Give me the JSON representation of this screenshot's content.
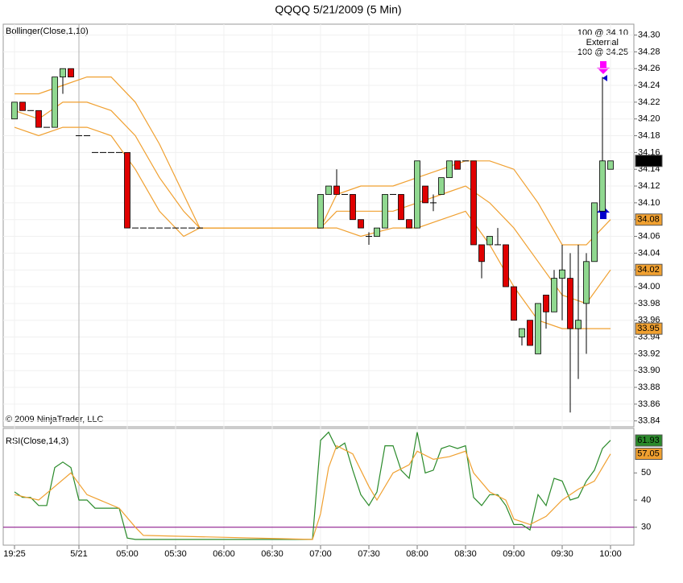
{
  "chart_data": [
    {
      "type": "candlestick",
      "title": "QQQQ  5/21/2009 (5 Min)",
      "indicator_label": "Bollinger(Close,1,10)",
      "copyright": "© 2009 NinjaTrader, LLC",
      "annotations": [
        "100 @ 34.10",
        "External",
        "100 @ 34.25"
      ],
      "xlim": [
        -1.4,
        76.9
      ],
      "xticks": [
        {
          "value": 0,
          "label": "19:25"
        },
        {
          "value": 8,
          "label": "5/21"
        },
        {
          "value": 14,
          "label": "05:00"
        },
        {
          "value": 20,
          "label": "05:30"
        },
        {
          "value": 26,
          "label": "06:00"
        },
        {
          "value": 32,
          "label": "06:30"
        },
        {
          "value": 38,
          "label": "07:00"
        },
        {
          "value": 44,
          "label": "07:30"
        },
        {
          "value": 50,
          "label": "08:00"
        },
        {
          "value": 56,
          "label": "08:30"
        },
        {
          "value": 62,
          "label": "09:00"
        },
        {
          "value": 68,
          "label": "09:30"
        },
        {
          "value": 74,
          "label": "10:00"
        }
      ],
      "ylim": [
        33.833,
        34.313
      ],
      "yticks": [
        {
          "value": 33.84,
          "label": "33.84"
        },
        {
          "value": 33.86,
          "label": "33.86"
        },
        {
          "value": 33.88,
          "label": "33.88"
        },
        {
          "value": 33.9,
          "label": "33.90"
        },
        {
          "value": 33.92,
          "label": "33.92"
        },
        {
          "value": 33.94,
          "label": "33.94"
        },
        {
          "value": 33.96,
          "label": "33.96"
        },
        {
          "value": 33.98,
          "label": "33.98"
        },
        {
          "value": 34.0,
          "label": "34.00"
        },
        {
          "value": 34.02,
          "label": "34.02"
        },
        {
          "value": 34.04,
          "label": "34.04"
        },
        {
          "value": 34.06,
          "label": "34.06"
        },
        {
          "value": 34.08,
          "label": "34.08"
        },
        {
          "value": 34.1,
          "label": "34.10"
        },
        {
          "value": 34.12,
          "label": "34.12"
        },
        {
          "value": 34.14,
          "label": "34.14"
        },
        {
          "value": 34.16,
          "label": "34.16"
        },
        {
          "value": 34.18,
          "label": "34.18"
        },
        {
          "value": 34.2,
          "label": "34.20"
        },
        {
          "value": 34.22,
          "label": "34.22"
        },
        {
          "value": 34.24,
          "label": "34.24"
        },
        {
          "value": 34.26,
          "label": "34.26"
        },
        {
          "value": 34.28,
          "label": "34.28"
        },
        {
          "value": 34.3,
          "label": "34.30"
        }
      ],
      "grid": true,
      "up_color": "#90d890",
      "down_color": "#e00000",
      "candles": {
        "x": [
          0,
          1,
          2,
          3,
          4,
          5,
          6,
          7,
          8,
          9,
          10,
          11,
          12,
          13,
          14,
          15,
          16,
          17,
          18,
          19,
          20,
          21,
          22,
          23,
          38,
          39,
          40,
          41,
          42,
          43,
          44,
          45,
          46,
          47,
          48,
          49,
          50,
          51,
          52,
          53,
          54,
          55,
          56,
          57,
          58,
          59,
          60,
          61,
          62,
          63,
          64,
          65,
          66,
          67,
          68,
          69,
          70,
          71,
          72,
          73,
          74
        ],
        "open": [
          34.2,
          34.22,
          34.21,
          34.21,
          34.19,
          34.19,
          34.25,
          34.26,
          34.18,
          34.18,
          34.16,
          34.16,
          34.16,
          34.16,
          34.16,
          34.07,
          34.07,
          34.07,
          34.07,
          34.07,
          34.07,
          34.07,
          34.07,
          34.07,
          34.07,
          34.11,
          34.12,
          34.11,
          34.11,
          34.08,
          34.06,
          34.06,
          34.07,
          34.11,
          34.11,
          34.08,
          34.07,
          34.12,
          34.1,
          34.11,
          34.13,
          34.15,
          34.15,
          34.15,
          34.05,
          34.05,
          34.05,
          34.05,
          34.0,
          33.94,
          33.96,
          33.92,
          33.99,
          33.97,
          34.01,
          34.01,
          33.95,
          33.98,
          34.03,
          34.09,
          34.14
        ],
        "high": [
          34.22,
          34.22,
          34.21,
          34.21,
          34.19,
          34.25,
          34.26,
          34.26,
          34.18,
          34.18,
          34.16,
          34.16,
          34.16,
          34.16,
          34.16,
          34.07,
          34.07,
          34.07,
          34.07,
          34.07,
          34.07,
          34.07,
          34.07,
          34.07,
          34.11,
          34.12,
          34.14,
          34.11,
          34.11,
          34.08,
          34.065,
          34.07,
          34.11,
          34.11,
          34.11,
          34.08,
          34.15,
          34.12,
          34.11,
          34.13,
          34.15,
          34.15,
          34.15,
          34.15,
          34.05,
          34.06,
          34.07,
          34.05,
          34.0,
          33.95,
          33.96,
          33.98,
          33.99,
          34.02,
          34.05,
          34.04,
          34.05,
          34.04,
          34.1,
          34.25,
          34.15
        ],
        "low": [
          34.2,
          34.21,
          34.21,
          34.19,
          34.19,
          34.19,
          34.23,
          34.25,
          34.18,
          34.18,
          34.16,
          34.16,
          34.16,
          34.16,
          34.07,
          34.07,
          34.07,
          34.07,
          34.07,
          34.07,
          34.07,
          34.07,
          34.07,
          34.07,
          34.07,
          34.11,
          34.11,
          34.11,
          34.08,
          34.07,
          34.05,
          34.06,
          34.07,
          34.11,
          34.08,
          34.07,
          34.07,
          34.1,
          34.09,
          34.11,
          34.13,
          34.14,
          34.15,
          34.05,
          34.01,
          34.05,
          34.05,
          34.0,
          33.96,
          33.93,
          33.93,
          33.92,
          33.95,
          33.97,
          33.96,
          33.85,
          33.89,
          33.92,
          34.03,
          34.09,
          34.14
        ],
        "close": [
          34.22,
          34.21,
          34.21,
          34.19,
          34.19,
          34.25,
          34.26,
          34.25,
          34.18,
          34.18,
          34.16,
          34.16,
          34.16,
          34.16,
          34.07,
          34.07,
          34.07,
          34.07,
          34.07,
          34.07,
          34.07,
          34.07,
          34.07,
          34.07,
          34.11,
          34.12,
          34.11,
          34.11,
          34.08,
          34.07,
          34.06,
          34.07,
          34.11,
          34.11,
          34.08,
          34.07,
          34.15,
          34.1,
          34.1,
          34.13,
          34.15,
          34.14,
          34.15,
          34.05,
          34.03,
          34.06,
          34.05,
          34.0,
          33.96,
          33.95,
          33.93,
          33.98,
          33.97,
          34.01,
          34.02,
          33.95,
          33.96,
          34.03,
          34.1,
          34.15,
          34.15
        ]
      },
      "series": [
        {
          "name": "Upper",
          "color": "#f0a030",
          "x": [
            0,
            3,
            6,
            9,
            12,
            15,
            18,
            21,
            23,
            38,
            40,
            43,
            47,
            50,
            53,
            56,
            59,
            62,
            65,
            68,
            71,
            74
          ],
          "values": [
            34.23,
            34.23,
            34.24,
            34.25,
            34.25,
            34.22,
            34.17,
            34.11,
            34.07,
            34.07,
            34.11,
            34.12,
            34.12,
            34.13,
            34.14,
            34.15,
            34.15,
            34.14,
            34.1,
            34.05,
            34.05,
            34.08
          ]
        },
        {
          "name": "Middle",
          "color": "#f0a030",
          "x": [
            0,
            3,
            6,
            9,
            12,
            15,
            18,
            21,
            23,
            38,
            40,
            43,
            47,
            50,
            53,
            56,
            59,
            62,
            65,
            68,
            71,
            74
          ],
          "values": [
            34.21,
            34.2,
            34.22,
            34.22,
            34.21,
            34.18,
            34.13,
            34.09,
            34.07,
            34.07,
            34.09,
            34.09,
            34.09,
            34.1,
            34.11,
            34.12,
            34.1,
            34.07,
            34.03,
            33.99,
            33.98,
            34.02
          ]
        },
        {
          "name": "Lower",
          "color": "#f0a030",
          "x": [
            0,
            3,
            6,
            9,
            12,
            15,
            18,
            21,
            23,
            38,
            40,
            43,
            47,
            50,
            53,
            56,
            59,
            62,
            65,
            68,
            71,
            74
          ],
          "values": [
            34.19,
            34.18,
            34.19,
            34.19,
            34.18,
            34.14,
            34.09,
            34.06,
            34.07,
            34.07,
            34.07,
            34.06,
            34.07,
            34.07,
            34.08,
            34.09,
            34.05,
            34.0,
            33.96,
            33.95,
            33.95,
            33.95
          ]
        }
      ],
      "last_labels": [
        {
          "value": 34.15,
          "color": "#000000",
          "text_color": "#ffffff"
        },
        {
          "value": 34.08,
          "color": "#f0a030",
          "text_color": "#000000"
        },
        {
          "value": 34.02,
          "color": "#f0a030",
          "text_color": "#000000"
        },
        {
          "value": 33.95,
          "color": "#f0a030",
          "text_color": "#000000"
        }
      ]
    },
    {
      "type": "line",
      "indicator_label": "RSI(Close,14,3)",
      "xlim": [
        -1.4,
        76.9
      ],
      "ylim": [
        23.4,
        66.4
      ],
      "yticks": [
        30,
        40,
        50
      ],
      "hline": 30,
      "hline_color": "#800080",
      "series": [
        {
          "name": "RSI",
          "color": "#2a8a2a",
          "x": [
            0,
            1,
            2,
            3,
            4,
            5,
            6,
            7,
            8,
            9,
            10,
            13,
            14,
            15,
            37,
            38,
            39,
            40,
            41,
            42,
            43,
            44,
            45,
            46,
            47,
            48,
            49,
            50,
            51,
            52,
            53,
            54,
            55,
            56,
            57,
            58,
            59,
            60,
            61,
            62,
            63,
            64,
            65,
            66,
            67,
            68,
            69,
            70,
            71,
            72,
            73,
            74
          ],
          "values": [
            43,
            41,
            41,
            38,
            38,
            52,
            54,
            52,
            40,
            40,
            37,
            37,
            26,
            25.5,
            25.5,
            62,
            65,
            59,
            61,
            51,
            42,
            38,
            43,
            60,
            60,
            51,
            48,
            65,
            50,
            51,
            59,
            60,
            59,
            60,
            41,
            38,
            42,
            42,
            38,
            31,
            31,
            29,
            42,
            38,
            48,
            47,
            40,
            41,
            47,
            51,
            59,
            62
          ]
        },
        {
          "name": "Avg",
          "color": "#f0a030",
          "x": [
            0,
            3,
            5,
            7,
            9,
            13,
            15,
            16,
            37,
            38,
            39,
            40,
            42,
            44,
            45,
            47,
            49,
            50,
            52,
            54,
            56,
            57,
            59,
            61,
            62,
            64,
            66,
            68,
            70,
            72,
            74
          ],
          "values": [
            42,
            40,
            45,
            50,
            42,
            37,
            30,
            27,
            25.5,
            35,
            52,
            60,
            57,
            45,
            40,
            50,
            53,
            58,
            55,
            56,
            58,
            50,
            43,
            40,
            33,
            31,
            34,
            40,
            44,
            47,
            57
          ]
        }
      ],
      "last_labels": [
        {
          "value": 61.93,
          "color": "#2a8a2a",
          "text_color": "#ffffff"
        },
        {
          "value": 57.05,
          "color": "#f0a030",
          "text_color": "#000000"
        }
      ]
    }
  ]
}
